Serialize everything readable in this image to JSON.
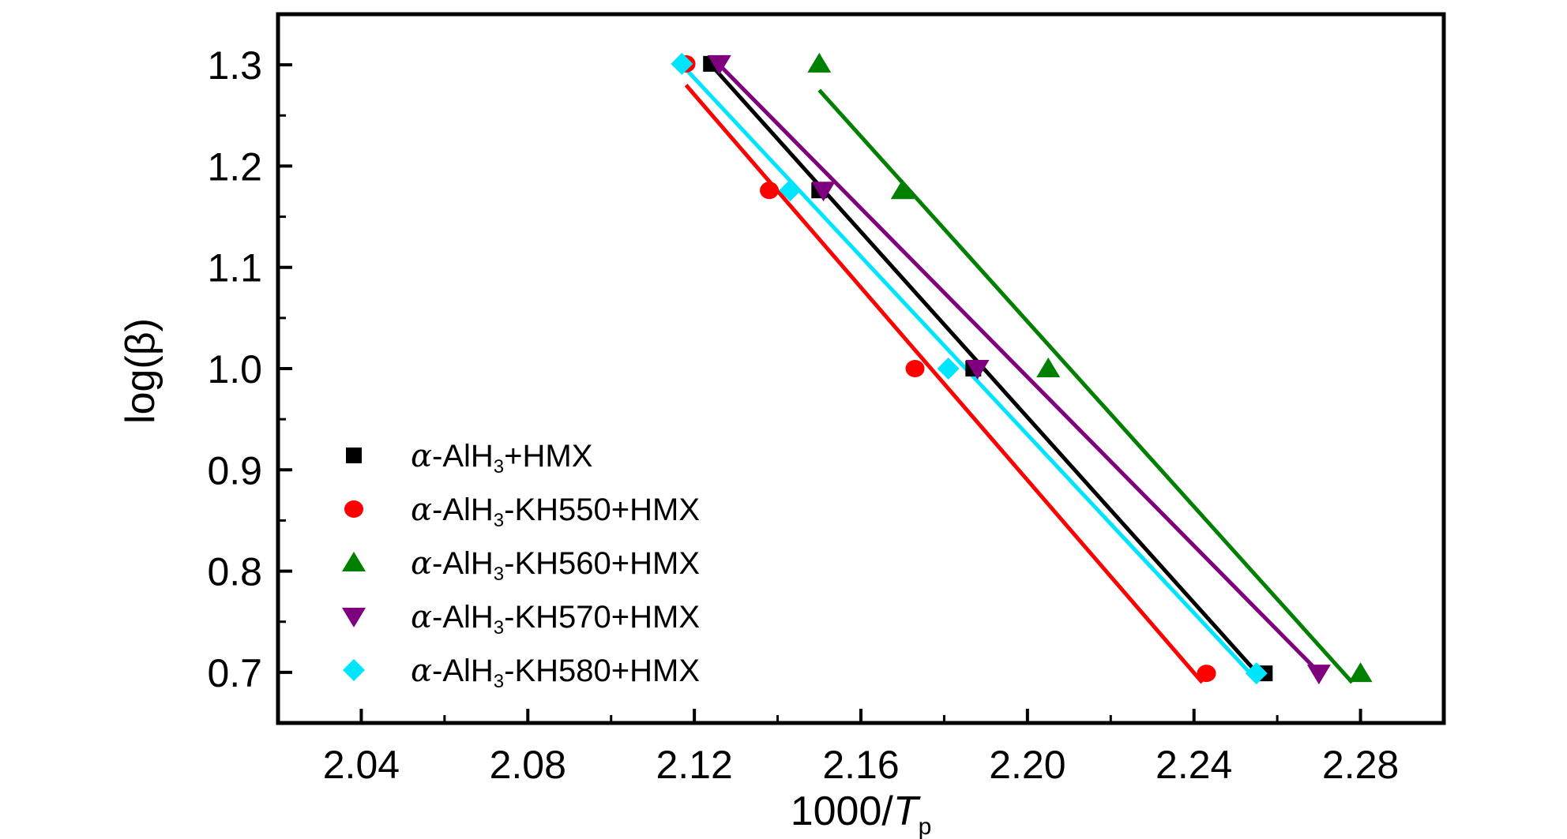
{
  "chart_data": {
    "type": "scatter",
    "xlabel": "1000/T",
    "xlabel_sub": "p",
    "ylabel": "log(β)",
    "xlim": [
      2.02,
      2.3
    ],
    "ylim": [
      0.65,
      1.35
    ],
    "x_ticks": [
      "2.04",
      "2.08",
      "2.12",
      "2.16",
      "2.20",
      "2.24",
      "2.28"
    ],
    "x_tick_values": [
      2.04,
      2.08,
      2.12,
      2.16,
      2.2,
      2.24,
      2.28
    ],
    "y_ticks": [
      "0.7",
      "0.8",
      "0.9",
      "1.0",
      "1.1",
      "1.2",
      "1.3"
    ],
    "y_tick_values": [
      0.7,
      0.8,
      0.9,
      1.0,
      1.1,
      1.2,
      1.3
    ],
    "grid": false,
    "legend_position": "bottom-left",
    "series": [
      {
        "name_prefix": "α-AlH",
        "name_sub": "3",
        "name_suffix": "+HMX",
        "marker": "square",
        "color": "#000000",
        "x": [
          2.257,
          2.187,
          2.15,
          2.124
        ],
        "y": [
          0.699,
          1.0,
          1.176,
          1.301
        ],
        "fit": {
          "x": [
            2.124,
            2.255
          ],
          "y": [
            1.3,
            0.7
          ]
        }
      },
      {
        "name_prefix": "α-AlH",
        "name_sub": "3",
        "name_suffix": "-KH550+HMX",
        "marker": "circle",
        "color": "#ff0000",
        "x": [
          2.243,
          2.173,
          2.138,
          2.118
        ],
        "y": [
          0.699,
          1.0,
          1.176,
          1.301
        ],
        "fit": {
          "x": [
            2.118,
            2.242
          ],
          "y": [
            1.28,
            0.69
          ]
        }
      },
      {
        "name_prefix": "α-AlH",
        "name_sub": "3",
        "name_suffix": "-KH560+HMX",
        "marker": "triangle-up",
        "color": "#008000",
        "x": [
          2.28,
          2.205,
          2.17,
          2.15
        ],
        "y": [
          0.699,
          1.0,
          1.176,
          1.301
        ],
        "fit": {
          "x": [
            2.15,
            2.278
          ],
          "y": [
            1.275,
            0.69
          ]
        }
      },
      {
        "name_prefix": "α-AlH",
        "name_sub": "3",
        "name_suffix": "-KH570+HMX",
        "marker": "triangle-down",
        "color": "#7f007f",
        "x": [
          2.27,
          2.188,
          2.151,
          2.126
        ],
        "y": [
          0.699,
          1.0,
          1.176,
          1.301
        ],
        "fit": {
          "x": [
            2.126,
            2.27
          ],
          "y": [
            1.3,
            0.7
          ]
        }
      },
      {
        "name_prefix": "α-AlH",
        "name_sub": "3",
        "name_suffix": "-KH580+HMX",
        "marker": "diamond",
        "color": "#00e5ff",
        "x": [
          2.255,
          2.181,
          2.143,
          2.117
        ],
        "y": [
          0.699,
          1.0,
          1.176,
          1.301
        ],
        "fit": {
          "x": [
            2.117,
            2.254
          ],
          "y": [
            1.3,
            0.697
          ]
        }
      }
    ]
  }
}
